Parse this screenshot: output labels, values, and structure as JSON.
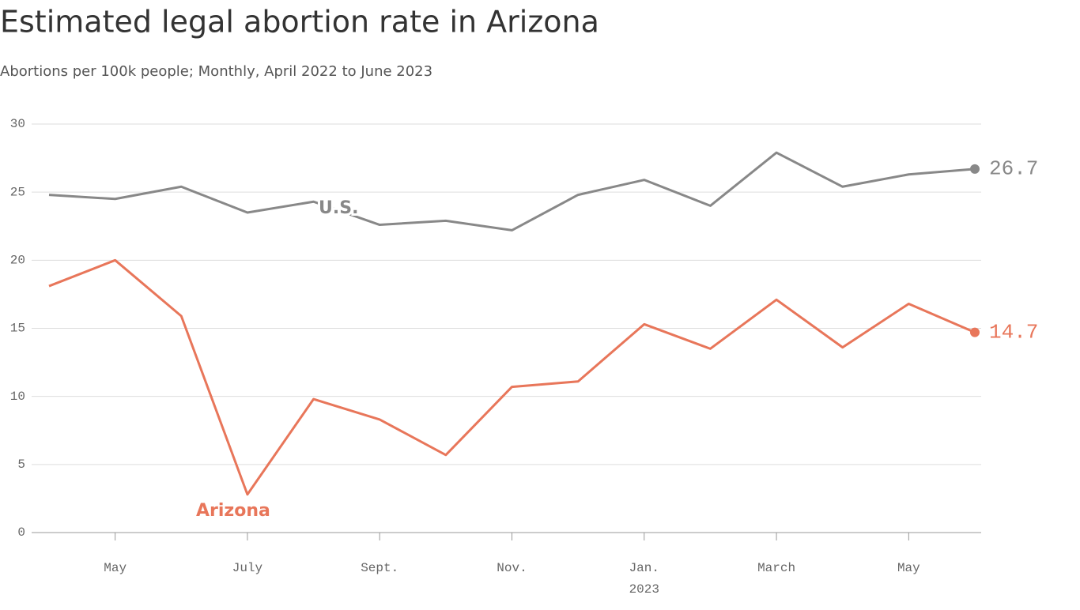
{
  "chart_data": {
    "type": "line",
    "title": "Estimated legal abortion rate in Arizona",
    "subtitle": "Abortions per 100k people; Monthly, April 2022 to June 2023",
    "categories": [
      null,
      "May",
      null,
      "July",
      null,
      "Sept.",
      null,
      "Nov.",
      null,
      "Jan.",
      null,
      "March",
      null,
      "May",
      null
    ],
    "x_year_label": "2023",
    "series": [
      {
        "name": "U.S.",
        "color": "#888888",
        "values": [
          24.8,
          24.5,
          25.4,
          23.5,
          24.3,
          22.6,
          22.9,
          22.2,
          24.8,
          25.9,
          24.0,
          27.9,
          25.4,
          26.3,
          26.7
        ]
      },
      {
        "name": "Arizona",
        "color": "#e8765a",
        "values": [
          18.1,
          20.0,
          15.9,
          2.8,
          9.8,
          8.3,
          5.7,
          10.7,
          11.1,
          15.3,
          13.5,
          17.1,
          13.6,
          16.8,
          14.7
        ]
      }
    ],
    "ylim": [
      0,
      30
    ],
    "yticks": [
      0,
      5,
      10,
      15,
      20,
      25,
      30
    ],
    "grid": true
  }
}
